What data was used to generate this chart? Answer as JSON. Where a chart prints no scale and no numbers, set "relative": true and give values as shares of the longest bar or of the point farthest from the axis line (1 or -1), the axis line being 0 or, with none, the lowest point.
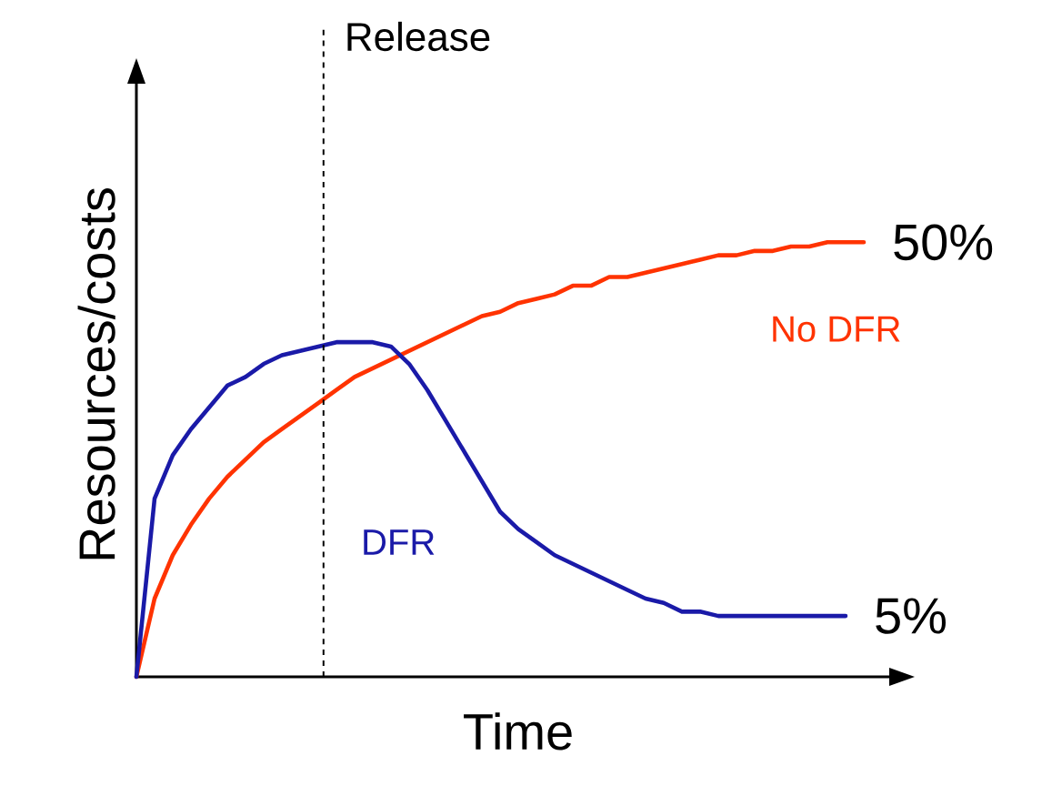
{
  "chart_data": {
    "type": "line",
    "relative": true,
    "xlabel": "Time",
    "ylabel": "Resources/costs",
    "line_style": "solid",
    "categories": [
      null,
      null,
      null,
      null,
      null,
      null,
      null,
      null,
      null,
      null,
      null,
      null,
      null,
      null,
      null,
      null,
      null,
      null,
      null,
      null,
      null,
      null,
      null,
      null,
      null,
      null,
      null,
      null,
      null,
      null,
      null,
      null,
      null,
      null,
      null,
      null,
      null,
      null,
      null,
      null,
      null,
      null,
      null
    ],
    "series": [
      {
        "name": "No DFR",
        "color": "#ff3300",
        "values": [
          0,
          0.18,
          0.28,
          0.35,
          0.41,
          0.46,
          0.5,
          0.54,
          0.57,
          0.6,
          0.63,
          0.66,
          0.69,
          0.71,
          0.73,
          0.75,
          0.77,
          0.79,
          0.81,
          0.83,
          0.84,
          0.86,
          0.87,
          0.88,
          0.9,
          0.9,
          0.92,
          0.92,
          0.93,
          0.94,
          0.95,
          0.96,
          0.97,
          0.97,
          0.98,
          0.98,
          0.99,
          0.99,
          1.0,
          1.0,
          1.0,
          null,
          null
        ]
      },
      {
        "name": "DFR",
        "color": "#1a1aa8",
        "values": [
          0,
          0.41,
          0.51,
          0.57,
          0.62,
          0.67,
          0.69,
          0.72,
          0.74,
          0.75,
          0.76,
          0.77,
          0.77,
          0.77,
          0.76,
          0.72,
          0.66,
          0.59,
          0.52,
          0.45,
          0.38,
          0.34,
          0.31,
          0.28,
          0.26,
          0.24,
          0.22,
          0.2,
          0.18,
          0.17,
          0.15,
          0.15,
          0.14,
          0.14,
          0.14,
          0.14,
          0.14,
          0.14,
          0.14,
          0.14,
          null,
          null,
          null
        ]
      }
    ],
    "annotations": [
      "Release",
      "50%",
      "5%"
    ]
  }
}
